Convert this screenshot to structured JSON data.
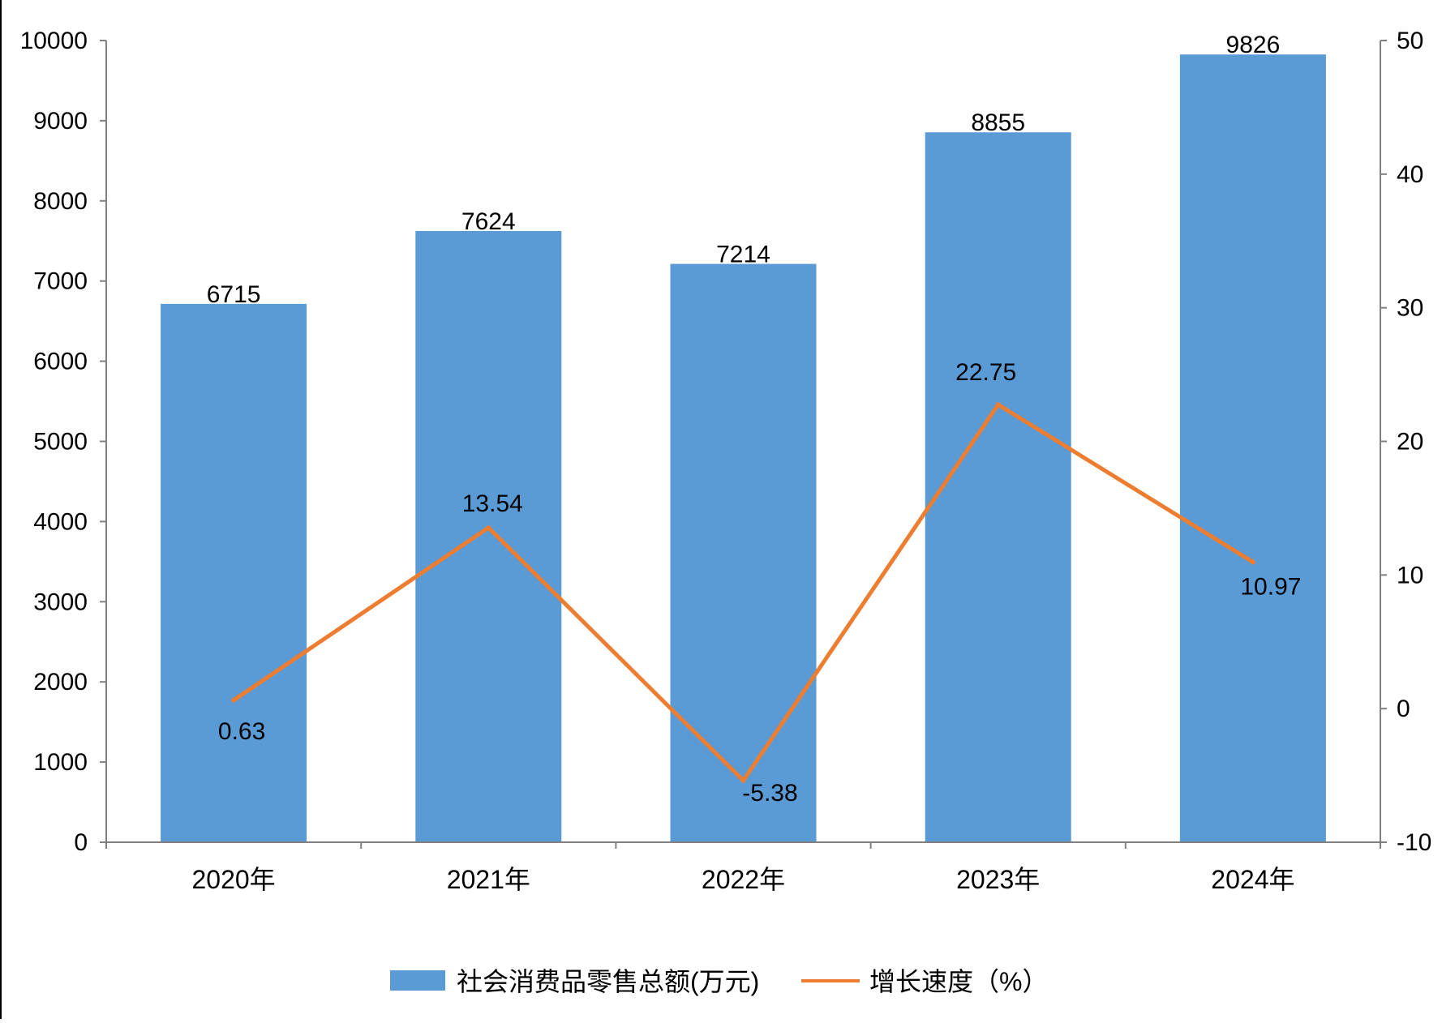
{
  "chart_data": {
    "type": "bar",
    "categories": [
      "2020年",
      "2021年",
      "2022年",
      "2023年",
      "2024年"
    ],
    "series": [
      {
        "name": "社会消费品零售总额(万元)",
        "type": "bar",
        "axis": "left",
        "color": "#5B9BD5",
        "values": [
          6715,
          7624,
          7214,
          8855,
          9826
        ]
      },
      {
        "name": "增长速度（%）",
        "type": "line",
        "axis": "right",
        "color": "#ED7D31",
        "values": [
          0.63,
          13.54,
          -5.38,
          22.75,
          10.97
        ]
      }
    ],
    "y_left": {
      "range": [
        0,
        10000
      ],
      "ticks": [
        "0",
        "1000",
        "2000",
        "3000",
        "4000",
        "5000",
        "6000",
        "7000",
        "8000",
        "9000",
        "10000"
      ]
    },
    "y_right": {
      "range": [
        -10,
        50
      ],
      "ticks": [
        "-10",
        "0",
        "10",
        "20",
        "30",
        "40",
        "50"
      ]
    },
    "bar_labels": [
      "6715",
      "7624",
      "7214",
      "8855",
      "9826"
    ],
    "line_labels": [
      "0.63",
      "13.54",
      "-5.38",
      "22.75",
      "10.97"
    ],
    "grid": false,
    "legend_position": "bottom"
  }
}
